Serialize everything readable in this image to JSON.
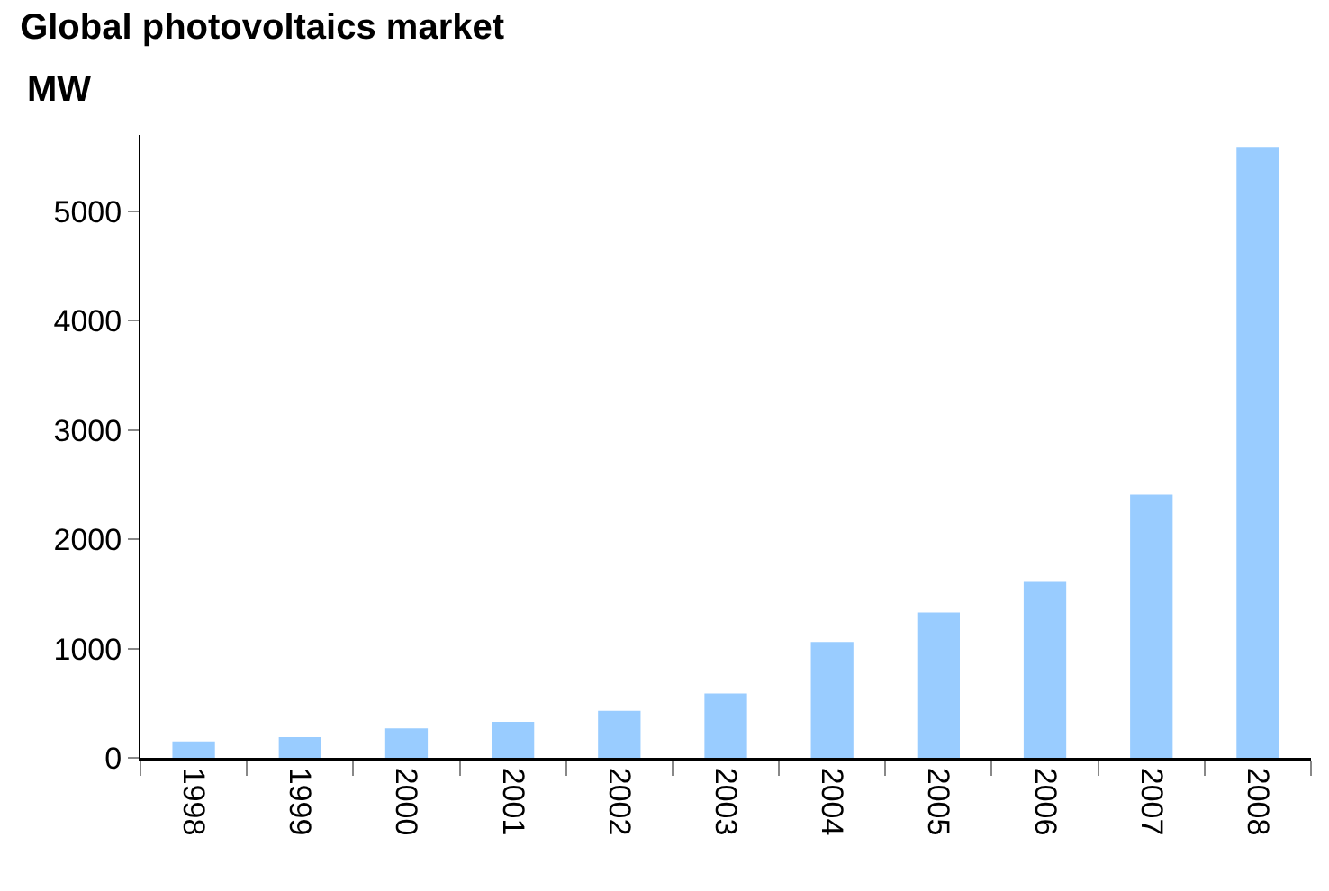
{
  "chart_data": {
    "type": "bar",
    "title": "Global photovoltaics market",
    "ylabel": "MW",
    "categories": [
      "1998",
      "1999",
      "2000",
      "2001",
      "2002",
      "2003",
      "2004",
      "2005",
      "2006",
      "2007",
      "2008"
    ],
    "values": [
      150,
      190,
      270,
      330,
      430,
      590,
      1060,
      1330,
      1610,
      2410,
      5590
    ],
    "color": "#99ccff",
    "ylim": [
      0,
      5700
    ],
    "yticks": [
      0,
      1000,
      2000,
      3000,
      4000,
      5000
    ],
    "grid": false
  }
}
